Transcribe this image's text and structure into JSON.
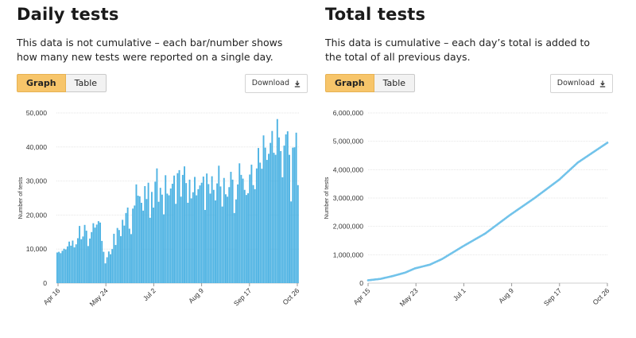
{
  "left": {
    "title": "Daily tests",
    "description": "This data is not cumulative – each bar/number shows how many new tests were reported on a single day.",
    "tabs": [
      "Graph",
      "Table"
    ],
    "active_tab": "Graph",
    "download_label": "Download"
  },
  "right": {
    "title": "Total tests",
    "description": "This data is cumulative – each day’s total is added to the total of all previous days.",
    "tabs": [
      "Graph",
      "Table"
    ],
    "active_tab": "Graph",
    "download_label": "Download"
  },
  "colors": {
    "bar": "#4eb3e3",
    "line": "#72c3ea",
    "grid": "#e6e6e6",
    "active_tab": "#f7c56a"
  },
  "icons": {
    "download": "download-icon"
  },
  "chart_data": [
    {
      "type": "bar",
      "title": "Daily tests",
      "ylabel": "Number of tests",
      "xlabel": "",
      "ylim": [
        0,
        50000
      ],
      "yticks": [
        0,
        10000,
        20000,
        30000,
        40000,
        50000
      ],
      "ytick_labels": [
        "0",
        "10,000",
        "20,000",
        "30,000",
        "40,000",
        "50,000"
      ],
      "xtick_labels": [
        "Apr 16",
        "May 24",
        "Jul 2",
        "Aug 9",
        "Sep 17",
        "Oct 26"
      ],
      "grid": true,
      "legend": "none",
      "series": [
        {
          "values": [
            9000,
            9200,
            8800,
            9500,
            10100,
            9900,
            10800,
            12200,
            11000,
            12500,
            10500,
            11400,
            13200,
            16800,
            12900,
            13700,
            17100,
            15400,
            10900,
            13100,
            15000,
            17600,
            16300,
            17200,
            18200,
            17800,
            12400,
            9200,
            5800,
            7600,
            9300,
            8500,
            10000,
            14500,
            11200,
            16200,
            15600,
            13800,
            18600,
            16900,
            20600,
            22200,
            16000,
            14400,
            21900,
            22800,
            29000,
            25700,
            25500,
            23600,
            21300,
            28500,
            24700,
            29500,
            19200,
            26800,
            22200,
            29800,
            33700,
            23900,
            28000,
            26000,
            20200,
            31700,
            26300,
            25800,
            27800,
            29200,
            31600,
            23300,
            32300,
            33200,
            25400,
            31800,
            34300,
            29400,
            23600,
            30400,
            24900,
            26700,
            31200,
            25800,
            27600,
            28700,
            29500,
            31300,
            21500,
            32200,
            29100,
            26300,
            31400,
            27400,
            24300,
            29300,
            34500,
            28400,
            22500,
            30900,
            26100,
            25400,
            28200,
            32700,
            30400,
            20600,
            24600,
            29000,
            35200,
            31800,
            30700,
            27400,
            25900,
            26400,
            31900,
            34800,
            28800,
            27600,
            33700,
            39700,
            35400,
            33600,
            43400,
            39800,
            36200,
            38000,
            41200,
            44700,
            38300,
            37700,
            48200,
            42800,
            38800,
            31100,
            40400,
            43700,
            44600,
            37700,
            24000,
            39800,
            39900,
            44200,
            28800
          ]
        }
      ]
    },
    {
      "type": "line",
      "title": "Total tests",
      "ylabel": "Number of tests",
      "xlabel": "",
      "ylim": [
        0,
        6000000
      ],
      "yticks": [
        0,
        1000000,
        2000000,
        3000000,
        4000000,
        5000000,
        6000000
      ],
      "ytick_labels": [
        "0",
        "1,000,000",
        "2,000,000",
        "3,000,000",
        "4,000,000",
        "5,000,000",
        "6,000,000"
      ],
      "xtick_labels": [
        "Apr 15",
        "May 23",
        "Jul 1",
        "Aug 9",
        "Sep 17",
        "Oct 26"
      ],
      "grid": true,
      "legend": "none",
      "x_index": [
        0,
        10,
        20,
        30,
        38,
        50,
        60,
        77,
        95,
        115,
        135,
        155,
        170,
        194
      ],
      "values": [
        100000,
        150000,
        250000,
        370000,
        520000,
        650000,
        850000,
        1300000,
        1750000,
        2400000,
        3000000,
        3650000,
        4250000,
        4950000
      ]
    }
  ]
}
